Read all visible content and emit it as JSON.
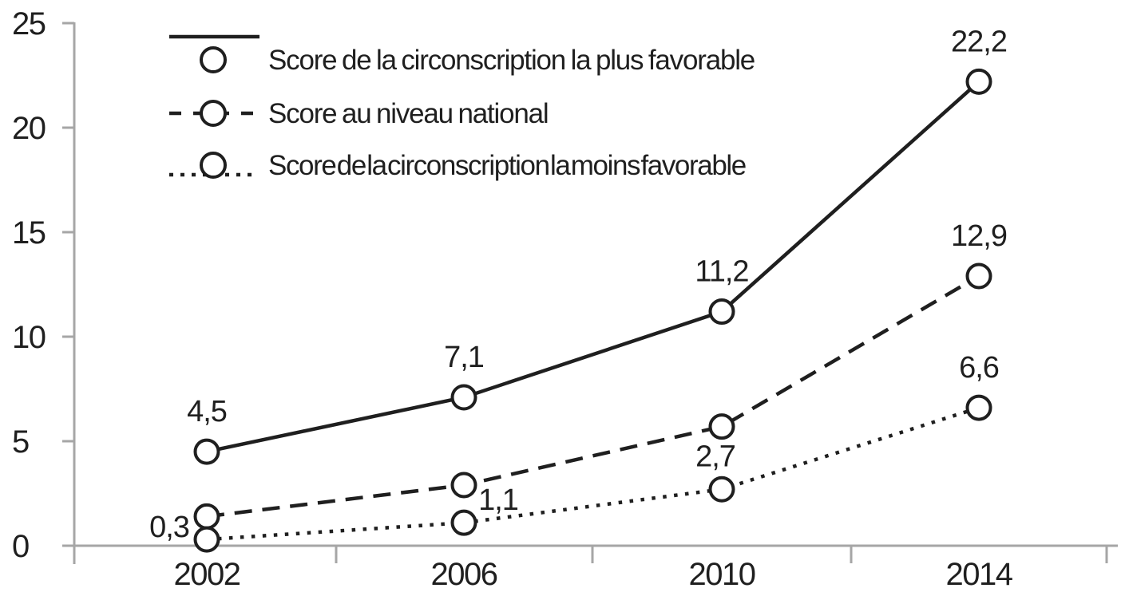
{
  "figure": {
    "description": "Line chart of scores by year"
  },
  "chart_data": {
    "type": "line",
    "title": "",
    "xlabel": "",
    "ylabel": "",
    "categories": [
      "2002",
      "2006",
      "2010",
      "2014"
    ],
    "series": [
      {
        "name": "Score de la circonscription la plus favorable",
        "line_style": "solid",
        "marker": "open-circle",
        "values": [
          4.5,
          7.1,
          11.2,
          22.2
        ],
        "point_labels": [
          "4,5",
          "7,1",
          "11,2",
          "22,2"
        ]
      },
      {
        "name": "Score au niveau national",
        "line_style": "dashed",
        "marker": "open-circle",
        "values": [
          1.4,
          2.9,
          5.7,
          12.9
        ],
        "point_labels": [
          null,
          null,
          null,
          "12,9"
        ]
      },
      {
        "name": "Score de la circonscription la moins favorable",
        "line_style": "dotted",
        "marker": "open-circle",
        "values": [
          0.3,
          1.1,
          2.7,
          6.6
        ],
        "point_labels": [
          "0,3",
          "1,1",
          "2,7",
          "6,6"
        ]
      }
    ],
    "ylim": [
      0,
      25
    ],
    "yticks": [
      0,
      5,
      10,
      15,
      20,
      25
    ],
    "grid": false,
    "legend_position": "top-left",
    "decimal_separator": ",",
    "colors": {
      "ink": "#1f1f1f",
      "axis": "#a6a6a6",
      "marker_fill": "#ffffff",
      "background": "#ffffff"
    }
  }
}
